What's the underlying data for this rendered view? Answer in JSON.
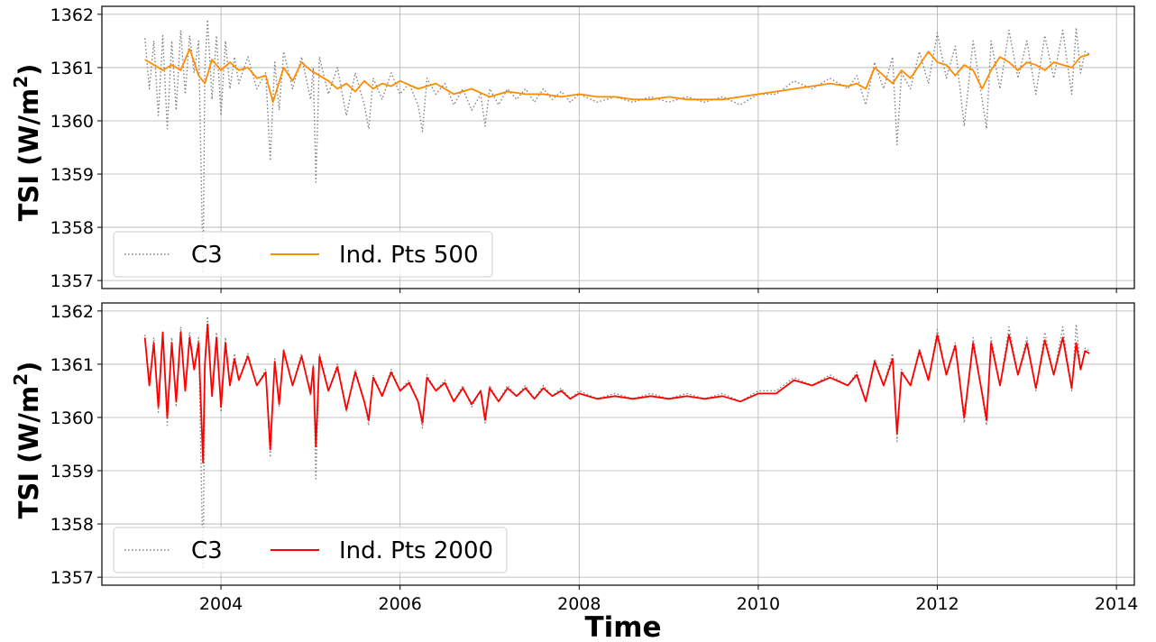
{
  "chart_data": [
    {
      "type": "line",
      "ylabel": "TSI (W/m$^2$)",
      "ylabel_parts": {
        "main": "TSI (W/m",
        "sup": "2",
        "close": ")"
      },
      "xlabel": "",
      "xlim": [
        2002.67,
        2014.2
      ],
      "ylim": [
        1356.85,
        1362.15
      ],
      "xticks": [
        2004,
        2006,
        2008,
        2010,
        2012,
        2014
      ],
      "xticklabels": [],
      "yticks": [
        1357,
        1358,
        1359,
        1360,
        1361,
        1362
      ],
      "yticklabels": [
        "1357",
        "1358",
        "1359",
        "1360",
        "1361",
        "1362"
      ],
      "grid": true,
      "legend": {
        "position": "lower-left",
        "columns": 2
      },
      "series": [
        {
          "name": "C3",
          "color": "#808080",
          "style": "dotted",
          "x": [
            2003.15,
            2003.2,
            2003.25,
            2003.3,
            2003.35,
            2003.4,
            2003.45,
            2003.5,
            2003.55,
            2003.6,
            2003.65,
            2003.7,
            2003.75,
            2003.8,
            2003.82,
            2003.85,
            2003.9,
            2003.95,
            2004.0,
            2004.05,
            2004.1,
            2004.15,
            2004.2,
            2004.3,
            2004.4,
            2004.5,
            2004.55,
            2004.6,
            2004.65,
            2004.7,
            2004.8,
            2004.9,
            2005.0,
            2005.03,
            2005.06,
            2005.1,
            2005.2,
            2005.3,
            2005.4,
            2005.5,
            2005.6,
            2005.65,
            2005.7,
            2005.8,
            2005.9,
            2006.0,
            2006.1,
            2006.2,
            2006.25,
            2006.3,
            2006.4,
            2006.5,
            2006.6,
            2006.7,
            2006.8,
            2006.9,
            2006.95,
            2007.0,
            2007.1,
            2007.2,
            2007.3,
            2007.4,
            2007.5,
            2007.6,
            2007.7,
            2007.8,
            2007.9,
            2008.0,
            2008.2,
            2008.4,
            2008.6,
            2008.8,
            2009.0,
            2009.2,
            2009.4,
            2009.6,
            2009.8,
            2010.0,
            2010.2,
            2010.4,
            2010.6,
            2010.8,
            2011.0,
            2011.1,
            2011.2,
            2011.3,
            2011.4,
            2011.5,
            2011.55,
            2011.6,
            2011.7,
            2011.8,
            2011.9,
            2012.0,
            2012.1,
            2012.2,
            2012.3,
            2012.4,
            2012.5,
            2012.55,
            2012.6,
            2012.7,
            2012.8,
            2012.9,
            2013.0,
            2013.1,
            2013.2,
            2013.3,
            2013.4,
            2013.5,
            2013.55,
            2013.6,
            2013.65,
            2013.7
          ],
          "y": [
            1361.55,
            1360.6,
            1361.5,
            1360.1,
            1361.6,
            1359.85,
            1361.5,
            1360.2,
            1361.7,
            1360.5,
            1361.6,
            1360.9,
            1361.5,
            1357.15,
            1361.0,
            1361.9,
            1360.4,
            1361.6,
            1360.1,
            1361.5,
            1360.6,
            1361.2,
            1360.7,
            1361.2,
            1360.6,
            1360.9,
            1359.25,
            1361.1,
            1360.2,
            1361.3,
            1360.6,
            1361.2,
            1360.4,
            1361.0,
            1358.85,
            1361.2,
            1360.5,
            1361.0,
            1360.1,
            1360.9,
            1360.3,
            1359.85,
            1360.8,
            1360.4,
            1360.9,
            1360.5,
            1360.7,
            1360.3,
            1359.8,
            1360.8,
            1360.5,
            1360.7,
            1360.3,
            1360.6,
            1360.2,
            1360.5,
            1359.9,
            1360.6,
            1360.3,
            1360.6,
            1360.4,
            1360.6,
            1360.35,
            1360.6,
            1360.4,
            1360.55,
            1360.35,
            1360.5,
            1360.35,
            1360.45,
            1360.35,
            1360.45,
            1360.35,
            1360.45,
            1360.35,
            1360.45,
            1360.3,
            1360.5,
            1360.5,
            1360.75,
            1360.6,
            1360.8,
            1360.6,
            1360.85,
            1360.3,
            1361.1,
            1360.6,
            1361.2,
            1359.55,
            1360.9,
            1360.6,
            1361.3,
            1360.7,
            1361.65,
            1360.8,
            1361.4,
            1359.9,
            1361.5,
            1360.4,
            1359.85,
            1361.5,
            1360.6,
            1361.7,
            1360.8,
            1361.5,
            1360.5,
            1361.6,
            1360.8,
            1361.7,
            1360.5,
            1361.75,
            1360.9,
            1361.3,
            1361.25
          ]
        },
        {
          "name": "Ind. Pts 500",
          "color": "#ff8c00",
          "style": "solid",
          "x": [
            2003.15,
            2003.25,
            2003.35,
            2003.45,
            2003.55,
            2003.65,
            2003.75,
            2003.82,
            2003.9,
            2004.0,
            2004.1,
            2004.2,
            2004.3,
            2004.4,
            2004.5,
            2004.58,
            2004.7,
            2004.8,
            2004.9,
            2005.0,
            2005.1,
            2005.2,
            2005.3,
            2005.4,
            2005.5,
            2005.6,
            2005.7,
            2005.8,
            2005.9,
            2006.0,
            2006.2,
            2006.4,
            2006.6,
            2006.8,
            2007.0,
            2007.2,
            2007.4,
            2007.6,
            2007.8,
            2008.0,
            2008.2,
            2008.4,
            2008.6,
            2008.8,
            2009.0,
            2009.2,
            2009.4,
            2009.6,
            2009.8,
            2010.0,
            2010.2,
            2010.4,
            2010.6,
            2010.8,
            2011.0,
            2011.1,
            2011.2,
            2011.3,
            2011.4,
            2011.5,
            2011.6,
            2011.7,
            2011.8,
            2011.9,
            2012.0,
            2012.1,
            2012.2,
            2012.3,
            2012.4,
            2012.5,
            2012.6,
            2012.7,
            2012.8,
            2012.9,
            2013.0,
            2013.1,
            2013.2,
            2013.3,
            2013.4,
            2013.5,
            2013.6,
            2013.7
          ],
          "y": [
            1361.15,
            1361.05,
            1360.95,
            1361.05,
            1360.95,
            1361.35,
            1360.85,
            1360.7,
            1361.15,
            1360.95,
            1361.1,
            1360.95,
            1361.0,
            1360.8,
            1360.85,
            1360.35,
            1361.0,
            1360.75,
            1361.1,
            1360.95,
            1360.85,
            1360.75,
            1360.6,
            1360.7,
            1360.55,
            1360.75,
            1360.6,
            1360.7,
            1360.65,
            1360.75,
            1360.6,
            1360.7,
            1360.5,
            1360.6,
            1360.45,
            1360.55,
            1360.5,
            1360.5,
            1360.45,
            1360.5,
            1360.45,
            1360.45,
            1360.4,
            1360.4,
            1360.45,
            1360.4,
            1360.4,
            1360.4,
            1360.45,
            1360.5,
            1360.55,
            1360.6,
            1360.65,
            1360.7,
            1360.65,
            1360.7,
            1360.6,
            1361.0,
            1360.85,
            1360.7,
            1360.95,
            1360.8,
            1361.05,
            1361.3,
            1361.1,
            1361.05,
            1360.85,
            1361.05,
            1360.95,
            1360.6,
            1360.95,
            1361.2,
            1361.1,
            1360.95,
            1361.1,
            1361.05,
            1360.95,
            1361.1,
            1361.05,
            1361.0,
            1361.2,
            1361.25
          ]
        }
      ]
    },
    {
      "type": "line",
      "ylabel": "TSI (W/m$^2$)",
      "ylabel_parts": {
        "main": "TSI (W/m",
        "sup": "2",
        "close": ")"
      },
      "xlabel": "Time",
      "xlim": [
        2002.67,
        2014.2
      ],
      "ylim": [
        1356.85,
        1362.15
      ],
      "xticks": [
        2004,
        2006,
        2008,
        2010,
        2012,
        2014
      ],
      "xticklabels": [
        "2004",
        "2006",
        "2008",
        "2010",
        "2012",
        "2014"
      ],
      "yticks": [
        1357,
        1358,
        1359,
        1360,
        1361,
        1362
      ],
      "yticklabels": [
        "1357",
        "1358",
        "1359",
        "1360",
        "1361",
        "1362"
      ],
      "grid": true,
      "legend": {
        "position": "lower-left",
        "columns": 2
      },
      "series": [
        {
          "name": "C3",
          "color": "#808080",
          "style": "dotted",
          "x": [
            2003.15,
            2003.2,
            2003.25,
            2003.3,
            2003.35,
            2003.4,
            2003.45,
            2003.5,
            2003.55,
            2003.6,
            2003.65,
            2003.7,
            2003.75,
            2003.8,
            2003.82,
            2003.85,
            2003.9,
            2003.95,
            2004.0,
            2004.05,
            2004.1,
            2004.15,
            2004.2,
            2004.3,
            2004.4,
            2004.5,
            2004.55,
            2004.6,
            2004.65,
            2004.7,
            2004.8,
            2004.9,
            2005.0,
            2005.03,
            2005.06,
            2005.1,
            2005.2,
            2005.3,
            2005.4,
            2005.5,
            2005.6,
            2005.65,
            2005.7,
            2005.8,
            2005.9,
            2006.0,
            2006.1,
            2006.2,
            2006.25,
            2006.3,
            2006.4,
            2006.5,
            2006.6,
            2006.7,
            2006.8,
            2006.9,
            2006.95,
            2007.0,
            2007.1,
            2007.2,
            2007.3,
            2007.4,
            2007.5,
            2007.6,
            2007.7,
            2007.8,
            2007.9,
            2008.0,
            2008.2,
            2008.4,
            2008.6,
            2008.8,
            2009.0,
            2009.2,
            2009.4,
            2009.6,
            2009.8,
            2010.0,
            2010.2,
            2010.4,
            2010.6,
            2010.8,
            2011.0,
            2011.1,
            2011.2,
            2011.3,
            2011.4,
            2011.5,
            2011.55,
            2011.6,
            2011.7,
            2011.8,
            2011.9,
            2012.0,
            2012.1,
            2012.2,
            2012.3,
            2012.4,
            2012.5,
            2012.55,
            2012.6,
            2012.7,
            2012.8,
            2012.9,
            2013.0,
            2013.1,
            2013.2,
            2013.3,
            2013.4,
            2013.5,
            2013.55,
            2013.6,
            2013.65,
            2013.7
          ],
          "y": [
            1361.55,
            1360.6,
            1361.5,
            1360.1,
            1361.6,
            1359.85,
            1361.5,
            1360.2,
            1361.7,
            1360.5,
            1361.6,
            1360.9,
            1361.5,
            1357.15,
            1361.0,
            1361.9,
            1360.4,
            1361.6,
            1360.1,
            1361.5,
            1360.6,
            1361.2,
            1360.7,
            1361.2,
            1360.6,
            1360.9,
            1359.25,
            1361.1,
            1360.2,
            1361.3,
            1360.6,
            1361.2,
            1360.4,
            1361.0,
            1358.85,
            1361.2,
            1360.5,
            1361.0,
            1360.1,
            1360.9,
            1360.3,
            1359.85,
            1360.8,
            1360.4,
            1360.9,
            1360.5,
            1360.7,
            1360.3,
            1359.8,
            1360.8,
            1360.5,
            1360.7,
            1360.3,
            1360.6,
            1360.2,
            1360.5,
            1359.9,
            1360.6,
            1360.3,
            1360.6,
            1360.4,
            1360.6,
            1360.35,
            1360.6,
            1360.4,
            1360.55,
            1360.35,
            1360.5,
            1360.35,
            1360.45,
            1360.35,
            1360.45,
            1360.35,
            1360.45,
            1360.35,
            1360.45,
            1360.3,
            1360.5,
            1360.5,
            1360.75,
            1360.6,
            1360.8,
            1360.6,
            1360.85,
            1360.3,
            1361.1,
            1360.6,
            1361.2,
            1359.55,
            1360.9,
            1360.6,
            1361.3,
            1360.7,
            1361.65,
            1360.8,
            1361.4,
            1359.9,
            1361.5,
            1360.4,
            1359.85,
            1361.5,
            1360.6,
            1361.7,
            1360.8,
            1361.5,
            1360.5,
            1361.6,
            1360.8,
            1361.7,
            1360.5,
            1361.75,
            1360.9,
            1361.3,
            1361.25
          ]
        },
        {
          "name": "Ind. Pts 2000",
          "color": "#ff0000",
          "style": "solid",
          "x": [
            2003.15,
            2003.2,
            2003.25,
            2003.3,
            2003.35,
            2003.4,
            2003.45,
            2003.5,
            2003.55,
            2003.6,
            2003.65,
            2003.7,
            2003.75,
            2003.8,
            2003.82,
            2003.85,
            2003.9,
            2003.95,
            2004.0,
            2004.05,
            2004.1,
            2004.15,
            2004.2,
            2004.3,
            2004.4,
            2004.5,
            2004.55,
            2004.6,
            2004.65,
            2004.7,
            2004.8,
            2004.9,
            2005.0,
            2005.03,
            2005.06,
            2005.1,
            2005.2,
            2005.3,
            2005.4,
            2005.5,
            2005.6,
            2005.65,
            2005.7,
            2005.8,
            2005.9,
            2006.0,
            2006.1,
            2006.2,
            2006.25,
            2006.3,
            2006.4,
            2006.5,
            2006.6,
            2006.7,
            2006.8,
            2006.9,
            2006.95,
            2007.0,
            2007.1,
            2007.2,
            2007.3,
            2007.4,
            2007.5,
            2007.6,
            2007.7,
            2007.8,
            2007.9,
            2008.0,
            2008.2,
            2008.4,
            2008.6,
            2008.8,
            2009.0,
            2009.2,
            2009.4,
            2009.6,
            2009.8,
            2010.0,
            2010.2,
            2010.4,
            2010.6,
            2010.8,
            2011.0,
            2011.1,
            2011.2,
            2011.3,
            2011.4,
            2011.5,
            2011.55,
            2011.6,
            2011.7,
            2011.8,
            2011.9,
            2012.0,
            2012.1,
            2012.2,
            2012.3,
            2012.4,
            2012.5,
            2012.55,
            2012.6,
            2012.7,
            2012.8,
            2012.9,
            2013.0,
            2013.1,
            2013.2,
            2013.3,
            2013.4,
            2013.5,
            2013.55,
            2013.6,
            2013.65,
            2013.7
          ],
          "y": [
            1361.5,
            1360.6,
            1361.4,
            1360.2,
            1361.6,
            1360.0,
            1361.4,
            1360.3,
            1361.6,
            1360.5,
            1361.5,
            1360.9,
            1361.4,
            1359.15,
            1361.0,
            1361.75,
            1360.4,
            1361.5,
            1360.2,
            1361.4,
            1360.6,
            1361.1,
            1360.7,
            1361.15,
            1360.6,
            1360.85,
            1359.4,
            1361.05,
            1360.25,
            1361.25,
            1360.6,
            1361.15,
            1360.45,
            1360.95,
            1359.45,
            1361.15,
            1360.5,
            1360.95,
            1360.15,
            1360.85,
            1360.3,
            1359.95,
            1360.75,
            1360.4,
            1360.85,
            1360.5,
            1360.65,
            1360.3,
            1359.9,
            1360.75,
            1360.5,
            1360.65,
            1360.3,
            1360.55,
            1360.25,
            1360.5,
            1359.95,
            1360.55,
            1360.3,
            1360.55,
            1360.4,
            1360.55,
            1360.35,
            1360.55,
            1360.4,
            1360.5,
            1360.35,
            1360.45,
            1360.35,
            1360.4,
            1360.35,
            1360.4,
            1360.35,
            1360.4,
            1360.35,
            1360.4,
            1360.3,
            1360.45,
            1360.45,
            1360.7,
            1360.6,
            1360.75,
            1360.6,
            1360.8,
            1360.3,
            1361.05,
            1360.6,
            1361.1,
            1359.7,
            1360.85,
            1360.6,
            1361.25,
            1360.7,
            1361.55,
            1360.8,
            1361.35,
            1360.0,
            1361.4,
            1360.45,
            1359.95,
            1361.4,
            1360.6,
            1361.55,
            1360.8,
            1361.4,
            1360.55,
            1361.45,
            1360.8,
            1361.5,
            1360.55,
            1361.4,
            1360.9,
            1361.25,
            1361.2
          ]
        }
      ]
    }
  ]
}
